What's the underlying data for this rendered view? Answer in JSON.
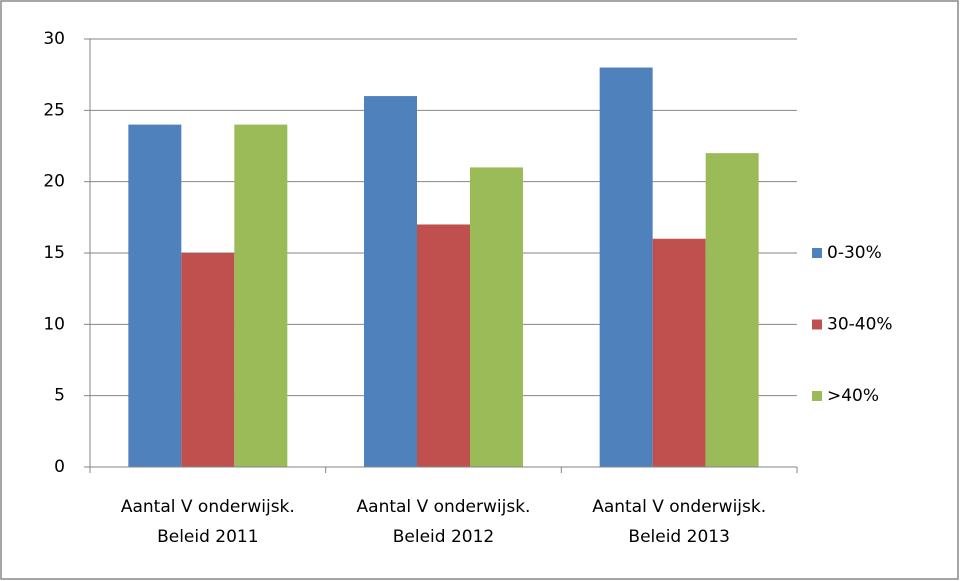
{
  "chart_data": {
    "type": "bar",
    "categories": [
      "Aantal V onderwijsk. Beleid 2011",
      "Aantal V onderwijsk. Beleid 2012",
      "Aantal V onderwijsk. Beleid 2013"
    ],
    "series": [
      {
        "name": "0-30%",
        "color": "#4f81bd",
        "values": [
          24,
          26,
          28
        ]
      },
      {
        "name": "30-40%",
        "color": "#c0504d",
        "values": [
          15,
          17,
          16
        ]
      },
      {
        "name": ">40%",
        "color": "#9bbb59",
        "values": [
          24,
          21,
          22
        ]
      }
    ],
    "ylim": [
      0,
      30
    ],
    "yticks": [
      0,
      5,
      10,
      15,
      20,
      25,
      30
    ],
    "grid": true,
    "legend": "right"
  }
}
